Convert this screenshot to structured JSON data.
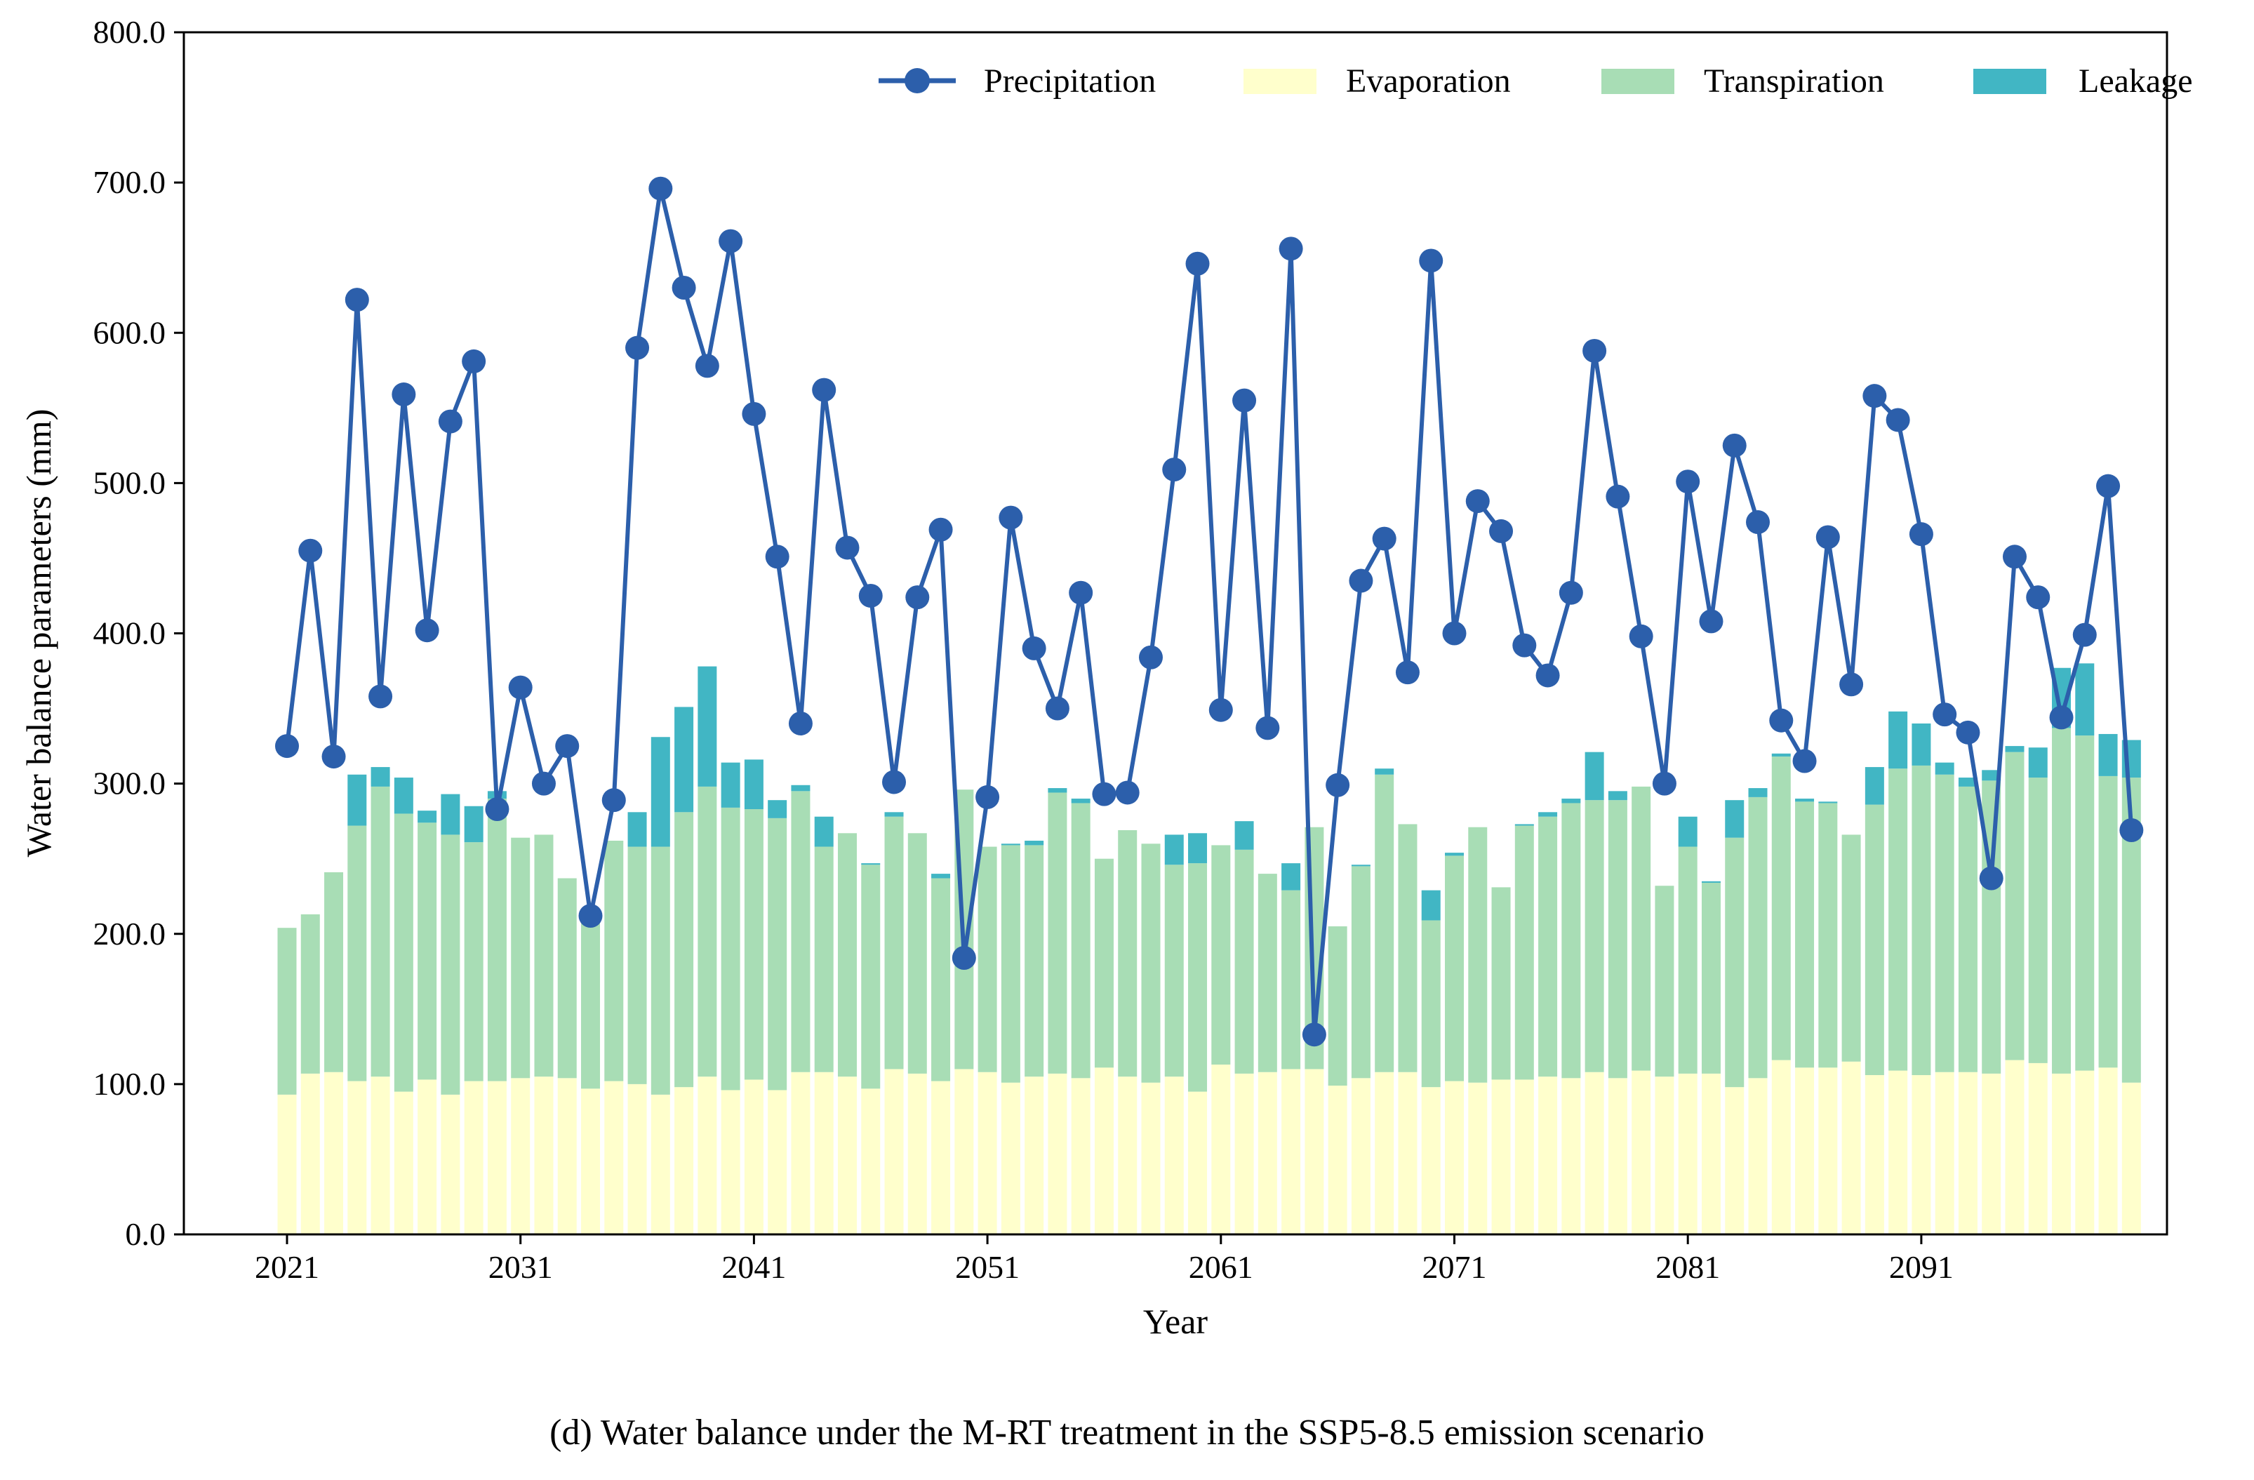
{
  "caption": "(d) Water balance under the M-RT treatment in the SSP5-8.5 emission scenario",
  "chart_data": {
    "type": "bar",
    "stacked": true,
    "xlabel": "Year",
    "ylabel": "Water balance parameters (mm)",
    "ylim": [
      0,
      800
    ],
    "yticks": [
      "0.0",
      "100.0",
      "200.0",
      "300.0",
      "400.0",
      "500.0",
      "600.0",
      "700.0",
      "800.0"
    ],
    "xticks": [
      "2021",
      "2031",
      "2041",
      "2051",
      "2061",
      "2071",
      "2081",
      "2091"
    ],
    "grid": false,
    "legend_position": "top-right",
    "x": [
      2021,
      2022,
      2023,
      2024,
      2025,
      2026,
      2027,
      2028,
      2029,
      2030,
      2031,
      2032,
      2033,
      2034,
      2035,
      2036,
      2037,
      2038,
      2039,
      2040,
      2041,
      2042,
      2043,
      2044,
      2045,
      2046,
      2047,
      2048,
      2049,
      2050,
      2051,
      2052,
      2053,
      2054,
      2055,
      2056,
      2057,
      2058,
      2059,
      2060,
      2061,
      2062,
      2063,
      2064,
      2065,
      2066,
      2067,
      2068,
      2069,
      2070,
      2071,
      2072,
      2073,
      2074,
      2075,
      2076,
      2077,
      2078,
      2079,
      2080,
      2081,
      2082,
      2083,
      2084,
      2085,
      2086,
      2087,
      2088,
      2089,
      2090,
      2091,
      2092,
      2093,
      2094,
      2095,
      2096,
      2097,
      2098,
      2099,
      2100
    ],
    "series": [
      {
        "name": "Evaporation",
        "kind": "bar",
        "color": "#ffffcc",
        "values": [
          93,
          107,
          108,
          102,
          105,
          95,
          103,
          93,
          102,
          102,
          104,
          105,
          104,
          97,
          102,
          100,
          93,
          98,
          105,
          96,
          103,
          96,
          108,
          108,
          105,
          97,
          110,
          107,
          102,
          110,
          108,
          101,
          105,
          107,
          104,
          111,
          105,
          101,
          105,
          95,
          113,
          107,
          108,
          110,
          110,
          99,
          104,
          108,
          108,
          98,
          102,
          101,
          103,
          103,
          105,
          104,
          108,
          104,
          109,
          105,
          107,
          107,
          98,
          104,
          116,
          111,
          111,
          115,
          106,
          109,
          106,
          108,
          108,
          107,
          116,
          114,
          107,
          109,
          111,
          101
        ]
      },
      {
        "name": "Transpiration",
        "kind": "bar",
        "color": "#a8ddb5",
        "values": [
          111,
          106,
          133,
          170,
          193,
          185,
          171,
          173,
          159,
          188,
          160,
          161,
          133,
          117,
          160,
          158,
          165,
          183,
          193,
          188,
          180,
          181,
          187,
          150,
          162,
          149,
          168,
          160,
          135,
          186,
          150,
          158,
          154,
          187,
          183,
          139,
          164,
          159,
          141,
          152,
          146,
          149,
          132,
          119,
          161,
          106,
          141,
          198,
          165,
          111,
          150,
          170,
          128,
          169,
          173,
          183,
          181,
          185,
          189,
          127,
          151,
          127,
          166,
          187,
          202,
          177,
          176,
          151,
          180,
          201,
          206,
          198,
          190,
          195,
          205,
          190,
          230,
          223,
          194,
          203
        ]
      },
      {
        "name": "Leakage",
        "kind": "bar",
        "color": "#41b6c4",
        "values": [
          0,
          0,
          0,
          34,
          13,
          24,
          8,
          27,
          24,
          5,
          0,
          0,
          0,
          0,
          0,
          23,
          73,
          70,
          80,
          30,
          33,
          12,
          4,
          20,
          0,
          1,
          3,
          0,
          3,
          0,
          0,
          1,
          3,
          3,
          3,
          0,
          0,
          0,
          20,
          20,
          0,
          19,
          0,
          18,
          0,
          0,
          1,
          4,
          0,
          20,
          2,
          0,
          0,
          1,
          3,
          3,
          32,
          6,
          0,
          0,
          20,
          1,
          25,
          6,
          2,
          2,
          1,
          0,
          25,
          38,
          28,
          8,
          6,
          7,
          4,
          20,
          40,
          48,
          28,
          25
        ]
      },
      {
        "name": "Precipitation",
        "kind": "line",
        "color": "#2c5fab",
        "values": [
          325,
          455,
          318,
          622,
          358,
          559,
          402,
          541,
          581,
          283,
          364,
          300,
          325,
          212,
          289,
          590,
          696,
          630,
          578,
          661,
          546,
          451,
          340,
          562,
          457,
          425,
          301,
          424,
          469,
          184,
          291,
          477,
          390,
          350,
          427,
          293,
          294,
          384,
          509,
          646,
          349,
          555,
          337,
          656,
          133,
          299,
          435,
          463,
          374,
          648,
          400,
          488,
          468,
          392,
          372,
          427,
          588,
          491,
          398,
          300,
          501,
          408,
          525,
          474,
          342,
          315,
          464,
          366,
          558,
          542,
          466,
          346,
          334,
          237,
          451,
          424,
          344,
          399,
          498,
          269
        ]
      }
    ],
    "legend": [
      "Precipitation",
      "Evaporation",
      "Transpiration",
      "Leakage"
    ]
  }
}
